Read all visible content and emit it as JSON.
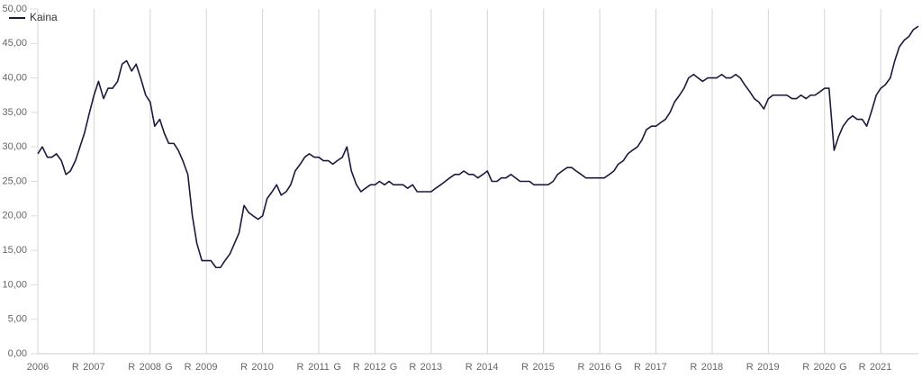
{
  "chart_data": {
    "type": "line",
    "series": [
      {
        "name": "Kaina",
        "color": "#1a1a3e",
        "values": [
          29,
          30,
          28.5,
          28.5,
          29,
          28,
          26,
          26.5,
          28,
          30,
          32,
          35,
          37.5,
          39.5,
          37,
          38.5,
          38.5,
          39.5,
          42,
          42.5,
          41,
          42,
          40,
          37.5,
          36.5,
          33,
          34,
          32,
          30.5,
          30.5,
          29.5,
          28,
          26,
          20,
          16,
          13.5,
          13.5,
          13.5,
          12.5,
          12.5,
          13.5,
          14.5,
          16,
          17.5,
          21.5,
          20.5,
          20,
          19.5,
          20,
          22.5,
          23.5,
          24.5,
          23,
          23.5,
          24.5,
          26.5,
          27.5,
          28.5,
          29,
          28.5,
          28.5,
          28,
          28,
          27.5,
          28,
          28.5,
          30,
          26.5,
          24.5,
          23.5,
          24,
          24.5,
          24.5,
          25,
          24.5,
          25,
          24.5,
          24.5,
          24.5,
          24,
          24.5,
          23.5,
          23.5,
          23.5,
          23.5,
          24,
          24.5,
          25,
          25.5,
          26,
          26,
          26.5,
          26,
          26,
          25.5,
          26,
          26.5,
          25,
          25,
          25.5,
          25.5,
          26,
          25.5,
          25,
          25,
          25,
          24.5,
          24.5,
          24.5,
          24.5,
          25,
          26,
          26.5,
          27,
          27,
          26.5,
          26,
          25.5,
          25.5,
          25.5,
          25.5,
          25.5,
          26,
          26.5,
          27.5,
          28,
          29,
          29.5,
          30,
          31,
          32.5,
          33,
          33,
          33.5,
          34,
          35,
          36.5,
          37.5,
          38.5,
          40,
          40.5,
          40,
          39.5,
          40,
          40,
          40,
          40.5,
          40,
          40,
          40.5,
          40,
          39,
          38,
          37,
          36.5,
          35.5,
          37,
          37.5,
          37.5,
          37.5,
          37.5,
          37,
          37,
          37.5,
          37,
          37.5,
          37.5,
          38,
          38.5,
          38.5,
          29.5,
          31.5,
          33,
          34,
          34.5,
          34,
          34,
          33,
          35,
          37.5,
          38.5,
          39,
          40,
          42.5,
          44.5,
          45.5,
          46,
          47,
          47.5
        ]
      }
    ],
    "x": [
      2006,
      2006.08,
      2006.17,
      2006.25,
      2006.33,
      2006.42,
      2006.5,
      2006.58,
      2006.67,
      2006.75,
      2006.83,
      2006.92,
      2007,
      2007.08,
      2007.17,
      2007.25,
      2007.33,
      2007.42,
      2007.5,
      2007.58,
      2007.67,
      2007.75,
      2007.83,
      2007.92,
      2008,
      2008.08,
      2008.17,
      2008.25,
      2008.33,
      2008.42,
      2008.5,
      2008.58,
      2008.67,
      2008.75,
      2008.83,
      2008.92,
      2009,
      2009.08,
      2009.17,
      2009.25,
      2009.33,
      2009.42,
      2009.5,
      2009.58,
      2009.67,
      2009.75,
      2009.83,
      2009.92,
      2010,
      2010.08,
      2010.17,
      2010.25,
      2010.33,
      2010.42,
      2010.5,
      2010.58,
      2010.67,
      2010.75,
      2010.83,
      2010.92,
      2011,
      2011.08,
      2011.17,
      2011.25,
      2011.33,
      2011.42,
      2011.5,
      2011.58,
      2011.67,
      2011.75,
      2011.83,
      2011.92,
      2012,
      2012.08,
      2012.17,
      2012.25,
      2012.33,
      2012.42,
      2012.5,
      2012.58,
      2012.67,
      2012.75,
      2012.83,
      2012.92,
      2013,
      2013.08,
      2013.17,
      2013.25,
      2013.33,
      2013.42,
      2013.5,
      2013.58,
      2013.67,
      2013.75,
      2013.83,
      2013.92,
      2014,
      2014.08,
      2014.17,
      2014.25,
      2014.33,
      2014.42,
      2014.5,
      2014.58,
      2014.67,
      2014.75,
      2014.83,
      2014.92,
      2015,
      2015.08,
      2015.17,
      2015.25,
      2015.33,
      2015.42,
      2015.5,
      2015.58,
      2015.67,
      2015.75,
      2015.83,
      2015.92,
      2016,
      2016.08,
      2016.17,
      2016.25,
      2016.33,
      2016.42,
      2016.5,
      2016.58,
      2016.67,
      2016.75,
      2016.83,
      2016.92,
      2017,
      2017.08,
      2017.17,
      2017.25,
      2017.33,
      2017.42,
      2017.5,
      2017.58,
      2017.67,
      2017.75,
      2017.83,
      2017.92,
      2018,
      2018.08,
      2018.17,
      2018.25,
      2018.33,
      2018.42,
      2018.5,
      2018.58,
      2018.67,
      2018.75,
      2018.83,
      2018.92,
      2019,
      2019.08,
      2019.17,
      2019.25,
      2019.33,
      2019.42,
      2019.5,
      2019.58,
      2019.67,
      2019.75,
      2019.83,
      2019.92,
      2020,
      2020.08,
      2020.17,
      2020.25,
      2020.33,
      2020.42,
      2020.5,
      2020.58,
      2020.67,
      2020.75,
      2020.83,
      2020.92,
      2021,
      2021.08,
      2021.17,
      2021.25,
      2021.33,
      2021.42,
      2021.5,
      2021.58,
      2021.67
    ],
    "xlim": [
      2006,
      2021.67
    ],
    "xticks": [
      2006,
      2007,
      2008,
      2009,
      2010,
      2011,
      2012,
      2013,
      2014,
      2015,
      2016,
      2017,
      2018,
      2019,
      2020,
      2021
    ],
    "ylim": [
      0,
      50
    ],
    "yticks": [
      {
        "value": 0,
        "label": "0,00"
      },
      {
        "value": 5,
        "label": "5,00"
      },
      {
        "value": 10,
        "label": "10,00"
      },
      {
        "value": 15,
        "label": "15,00"
      },
      {
        "value": 20,
        "label": "20,00"
      },
      {
        "value": 25,
        "label": "25,00"
      },
      {
        "value": 30,
        "label": "30,00"
      },
      {
        "value": 35,
        "label": "35,00"
      },
      {
        "value": 40,
        "label": "40,00"
      },
      {
        "value": 45,
        "label": "45,00"
      },
      {
        "value": 50,
        "label": "50,00"
      }
    ],
    "events": [
      {
        "x": 2006.67,
        "label": "R"
      },
      {
        "x": 2007.67,
        "label": "R"
      },
      {
        "x": 2008.33,
        "label": "G"
      },
      {
        "x": 2008.67,
        "label": "R"
      },
      {
        "x": 2009.67,
        "label": "R"
      },
      {
        "x": 2010.67,
        "label": "R"
      },
      {
        "x": 2011.33,
        "label": "G"
      },
      {
        "x": 2011.67,
        "label": "R"
      },
      {
        "x": 2012.33,
        "label": "G"
      },
      {
        "x": 2012.67,
        "label": "R"
      },
      {
        "x": 2013.67,
        "label": "R"
      },
      {
        "x": 2014.67,
        "label": "R"
      },
      {
        "x": 2015.67,
        "label": "R"
      },
      {
        "x": 2016.33,
        "label": "G"
      },
      {
        "x": 2016.67,
        "label": "R"
      },
      {
        "x": 2017.67,
        "label": "R"
      },
      {
        "x": 2018.67,
        "label": "R"
      },
      {
        "x": 2019.67,
        "label": "R"
      },
      {
        "x": 2020.33,
        "label": "G"
      },
      {
        "x": 2020.67,
        "label": "R"
      }
    ],
    "grid": "x"
  }
}
